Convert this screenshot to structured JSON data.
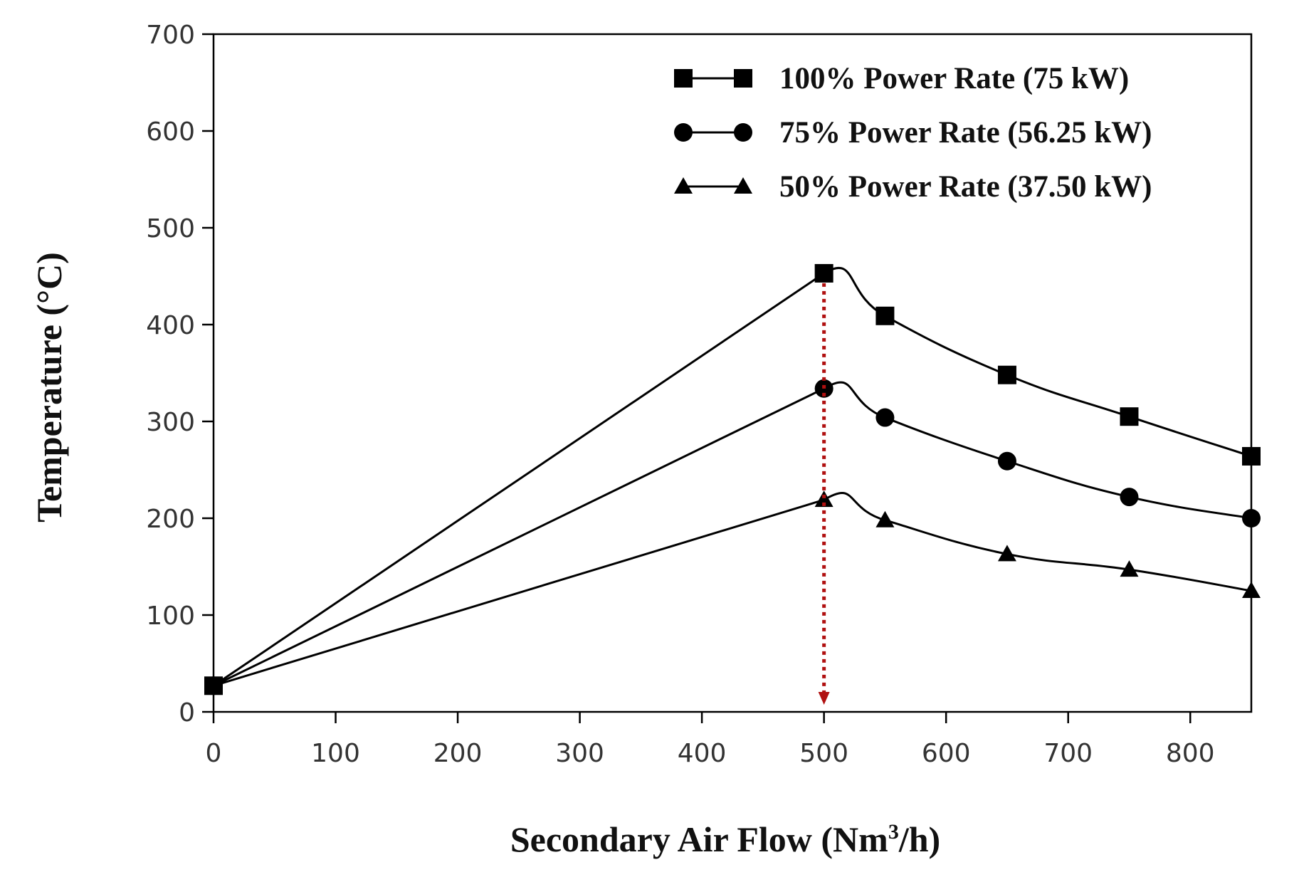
{
  "chart_data": {
    "type": "line",
    "xlabel_parts": [
      "Secondary Air Flow (Nm",
      "3",
      "/h)"
    ],
    "ylabel": "Temperature (°C)",
    "xlim": [
      0,
      850
    ],
    "ylim": [
      0,
      700
    ],
    "x_ticks": [
      0,
      100,
      200,
      300,
      400,
      500,
      600,
      700,
      800
    ],
    "y_ticks": [
      0,
      100,
      200,
      300,
      400,
      500,
      600,
      700
    ],
    "grid": false,
    "legend_position": "top-right",
    "series": [
      {
        "name": "100% Power Rate (75 kW)",
        "marker": "square",
        "x": [
          0,
          500,
          550,
          650,
          750,
          850
        ],
        "values": [
          27,
          453,
          409,
          348,
          305,
          264
        ]
      },
      {
        "name": "75% Power Rate (56.25 kW)",
        "marker": "circle",
        "x": [
          0,
          500,
          550,
          650,
          750,
          850
        ],
        "values": [
          27,
          334,
          304,
          259,
          222,
          200
        ]
      },
      {
        "name": "50% Power Rate (37.50 kW)",
        "marker": "triangle",
        "x": [
          0,
          500,
          550,
          650,
          750,
          850
        ],
        "values": [
          27,
          219,
          198,
          163,
          147,
          125
        ]
      }
    ],
    "annotation": {
      "type": "dotted-arrow",
      "x": 500,
      "y_from": 453,
      "y_to": 0,
      "color": "#b01010"
    },
    "line_color": "#000000"
  }
}
